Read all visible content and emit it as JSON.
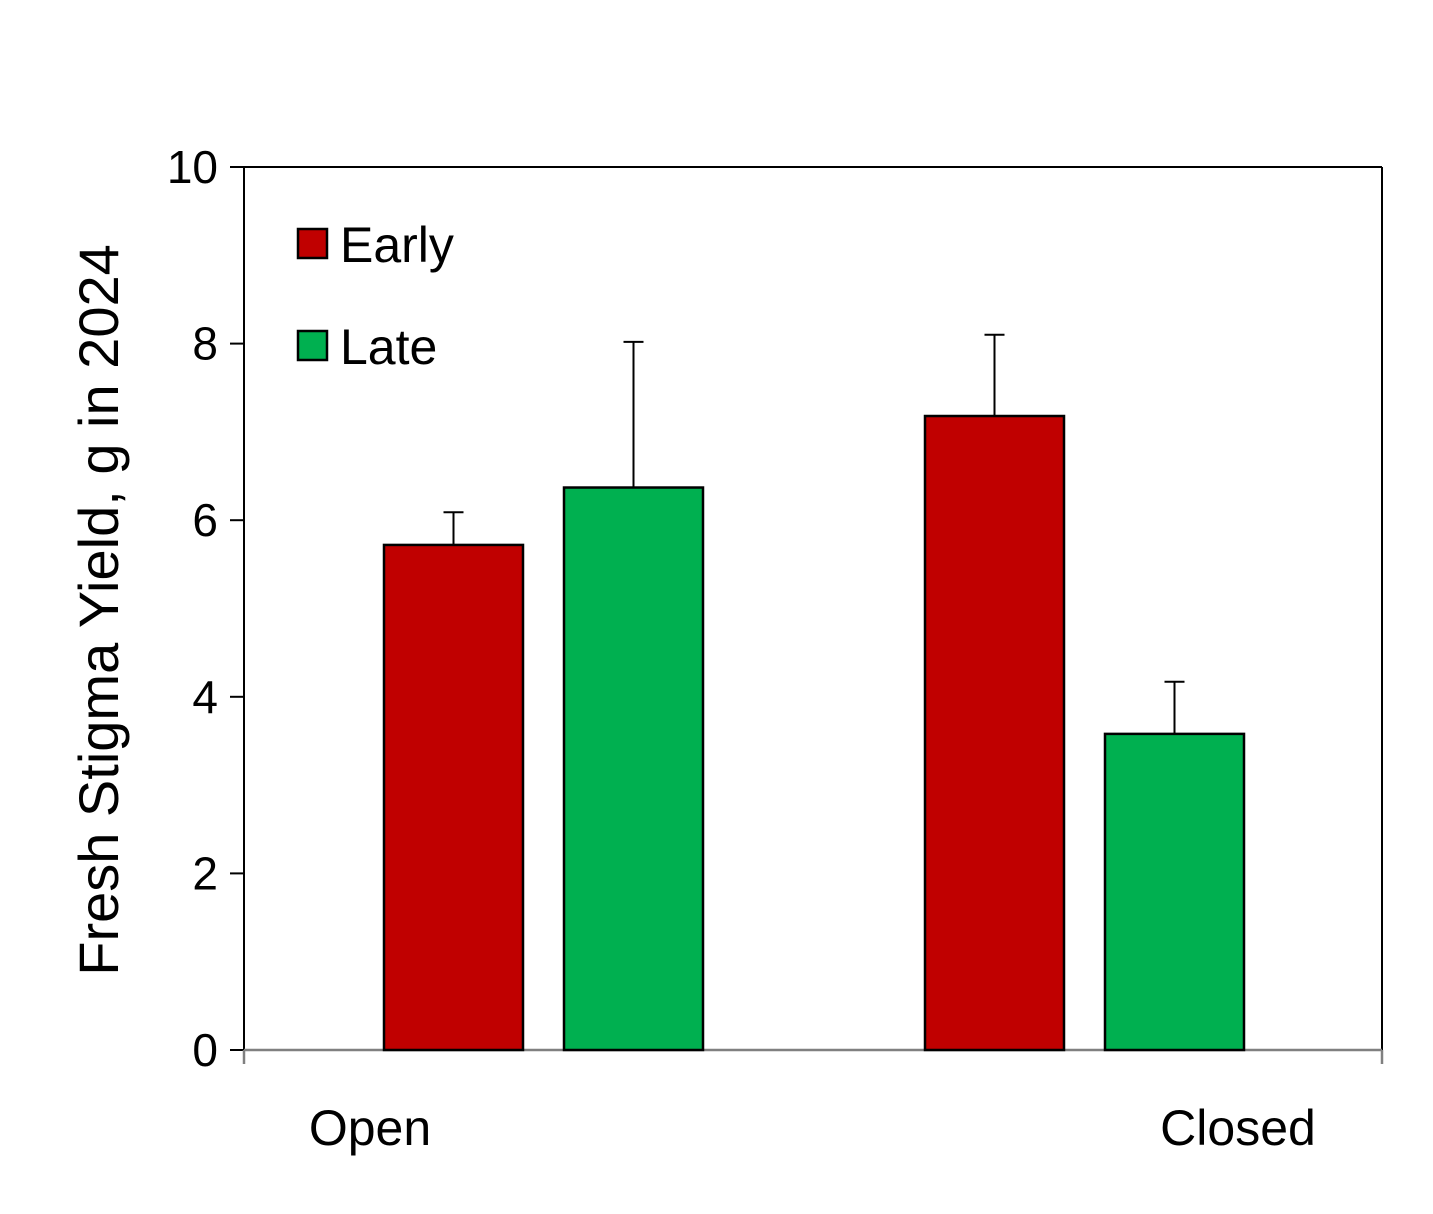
{
  "chart_data": {
    "type": "bar",
    "title": "",
    "xlabel": "",
    "ylabel": "Fresh Stigma Yield, g in 2024",
    "ylim": [
      0,
      10
    ],
    "yticks": [
      0,
      2,
      4,
      6,
      8,
      10
    ],
    "categories": [
      "Open",
      "Closed"
    ],
    "series": [
      {
        "name": "Early",
        "color": "#c00000",
        "values": [
          5.72,
          7.18
        ],
        "errors": [
          0.37,
          0.92
        ]
      },
      {
        "name": "Late",
        "color": "#00b050",
        "values": [
          6.37,
          3.58
        ],
        "errors": [
          1.65,
          0.59
        ]
      }
    ],
    "legend_position": "top-left",
    "grid": false
  }
}
